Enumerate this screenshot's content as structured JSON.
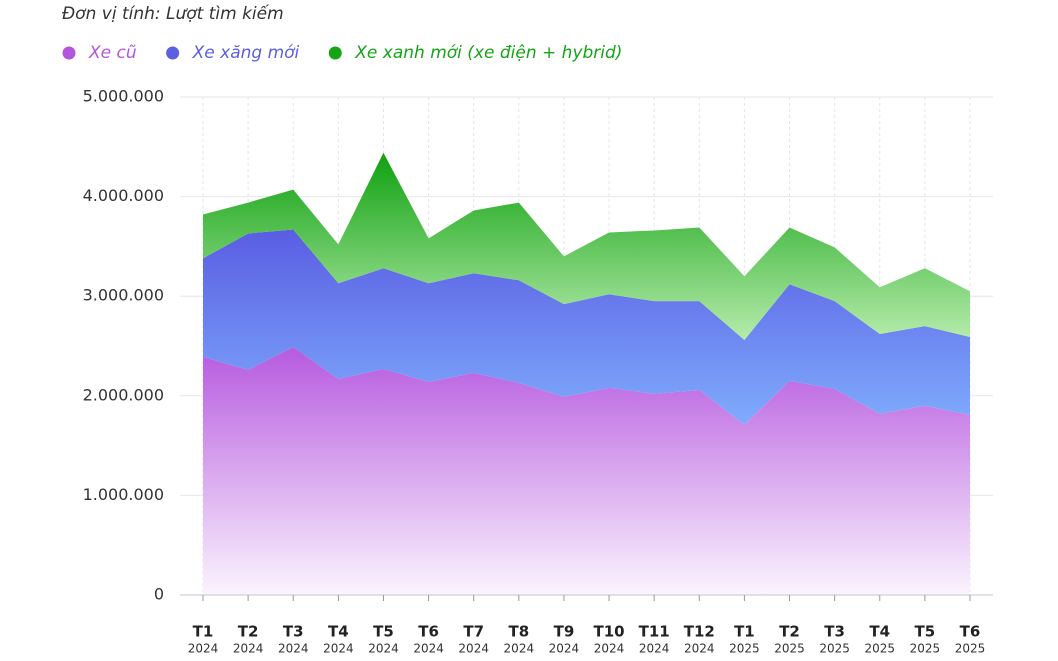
{
  "chart_data": {
    "type": "stacked_area",
    "subtitle": "Đơn vị tính: Lượt tìm kiếm",
    "categories": [
      {
        "month": "T1",
        "year": "2024"
      },
      {
        "month": "T2",
        "year": "2024"
      },
      {
        "month": "T3",
        "year": "2024"
      },
      {
        "month": "T4",
        "year": "2024"
      },
      {
        "month": "T5",
        "year": "2024"
      },
      {
        "month": "T6",
        "year": "2024"
      },
      {
        "month": "T7",
        "year": "2024"
      },
      {
        "month": "T8",
        "year": "2024"
      },
      {
        "month": "T9",
        "year": "2024"
      },
      {
        "month": "T10",
        "year": "2024"
      },
      {
        "month": "T11",
        "year": "2024"
      },
      {
        "month": "T12",
        "year": "2024"
      },
      {
        "month": "T1",
        "year": "2025"
      },
      {
        "month": "T2",
        "year": "2025"
      },
      {
        "month": "T3",
        "year": "2025"
      },
      {
        "month": "T4",
        "year": "2025"
      },
      {
        "month": "T5",
        "year": "2025"
      },
      {
        "month": "T6",
        "year": "2025"
      }
    ],
    "series": [
      {
        "name": "Xe cũ",
        "color": "#b455de",
        "values": [
          2390000,
          2260000,
          2490000,
          2170000,
          2270000,
          2140000,
          2230000,
          2130000,
          1990000,
          2080000,
          2020000,
          2060000,
          1710000,
          2150000,
          2070000,
          1820000,
          1900000,
          1810000
        ]
      },
      {
        "name": "Xe xăng mới",
        "color": "#5b5fe0",
        "values": [
          990000,
          1370000,
          1180000,
          960000,
          1010000,
          990000,
          1000000,
          1030000,
          930000,
          940000,
          930000,
          890000,
          850000,
          970000,
          880000,
          800000,
          800000,
          780000
        ]
      },
      {
        "name": "Xe xanh mới (xe điện + hybrid)",
        "color": "#16a316",
        "values": [
          440000,
          310000,
          400000,
          390000,
          1160000,
          450000,
          630000,
          780000,
          480000,
          620000,
          710000,
          740000,
          640000,
          570000,
          540000,
          470000,
          580000,
          460000
        ]
      }
    ],
    "ylim": [
      0,
      5000000
    ],
    "yticks": [
      0,
      {
        "value": 1000000,
        "label": "1.000.000"
      },
      {
        "value": 2000000,
        "label": "2.000.000"
      },
      {
        "value": 3000000,
        "label": "3.000.000"
      },
      {
        "value": 4000000,
        "label": "4.000.000"
      },
      {
        "value": 5000000,
        "label": "5.000.000"
      }
    ],
    "grid": true
  }
}
